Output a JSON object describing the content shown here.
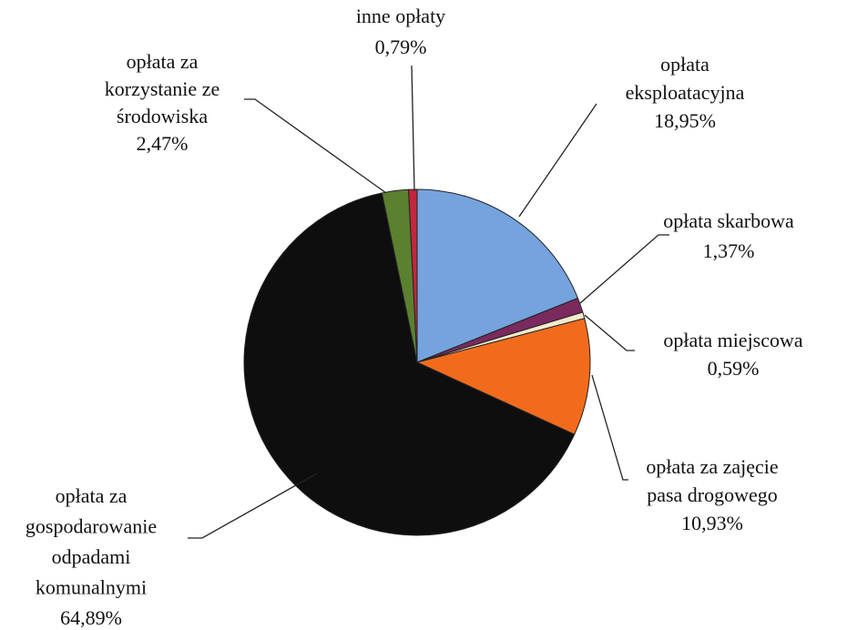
{
  "chart_data": {
    "type": "pie",
    "categories": [
      "opłata\neksploatacyjna",
      "opłata skarbowa",
      "opłata miejscowa",
      "opłata za zajęcie\npasa drogowego",
      "opłata za\ngospodarowanie\nodpadami\nkomunalnymi",
      "opłata za\nkorzystanie ze\nśrodowiska",
      "inne opłaty"
    ],
    "values": [
      18.95,
      1.37,
      0.59,
      10.93,
      64.89,
      2.47,
      0.79
    ],
    "value_labels": [
      "18,95%",
      "1,37%",
      "0,59%",
      "10,93%",
      "64,89%",
      "2,47%",
      "0,79%"
    ],
    "colors": [
      "#74a3dd",
      "#7a2a5e",
      "#f4ebcc",
      "#f26b1d",
      "#0e0e0e",
      "#5b8030",
      "#c4263e"
    ]
  }
}
